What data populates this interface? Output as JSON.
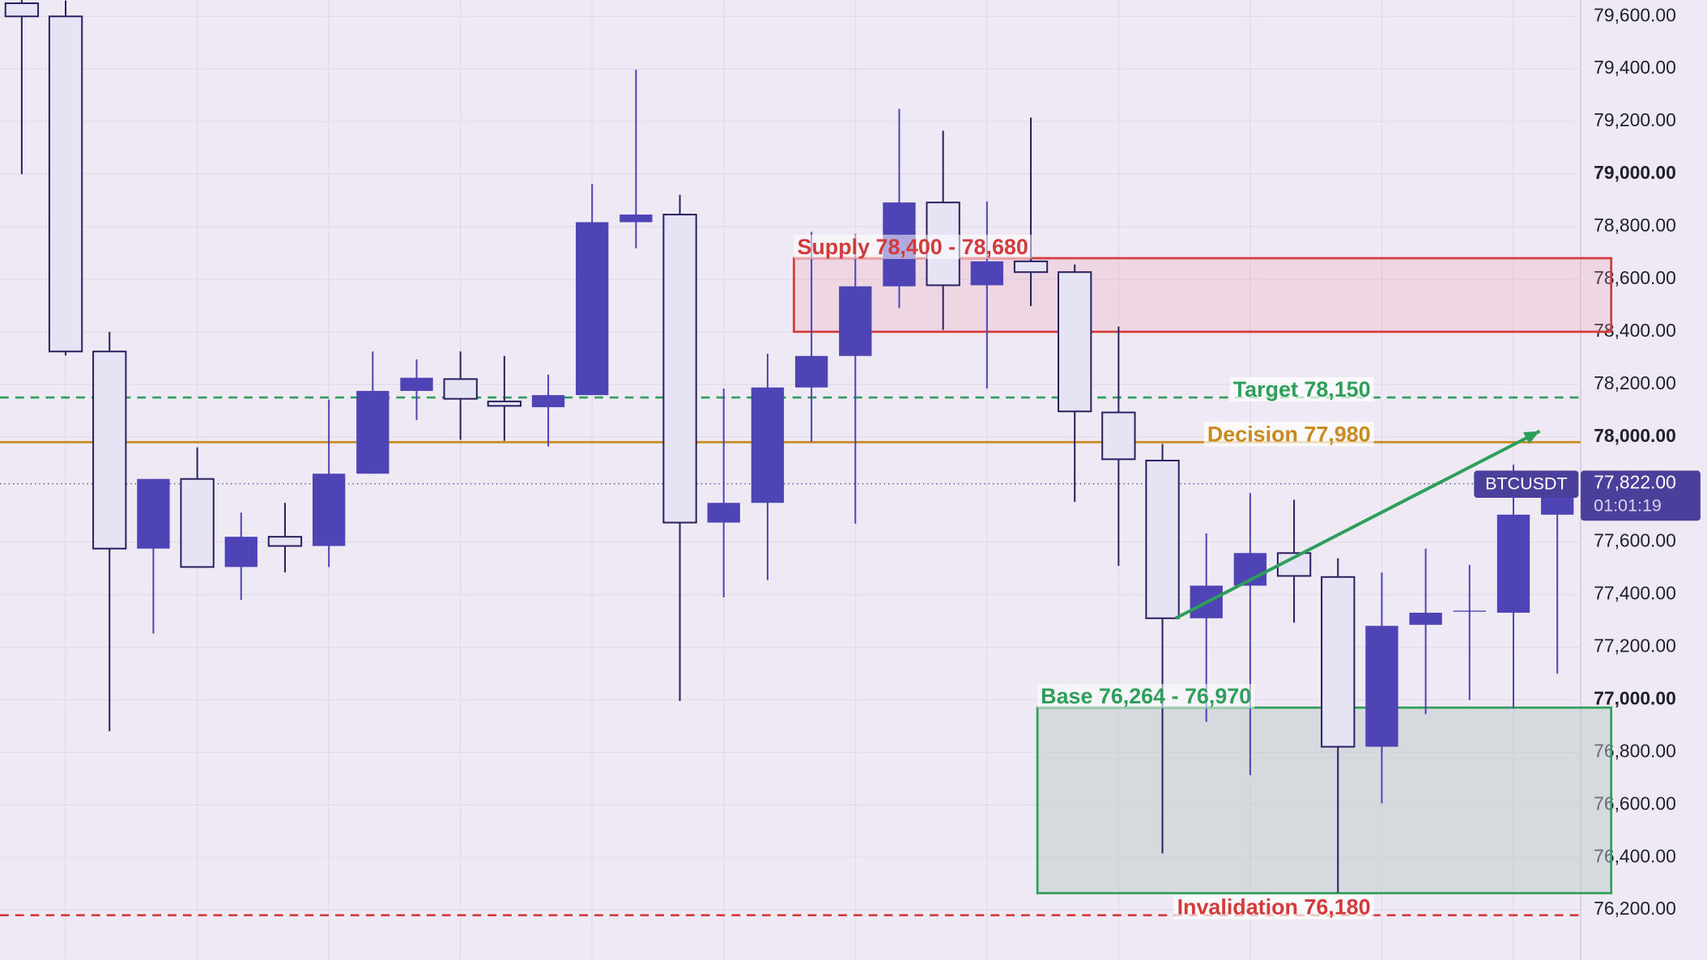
{
  "chart_data": {
    "type": "candlestick",
    "series": [
      {
        "name": "BTCUSDT",
        "up_color": "#4f44b5",
        "down_color": "#e6e3f5",
        "open": [
          79650,
          79600,
          78325,
          77575,
          77840,
          77505,
          77620,
          77585,
          77860,
          78175,
          78220,
          78135,
          78113,
          78159,
          78817,
          78846,
          77674,
          77749,
          78188,
          78308,
          78573,
          78892,
          78577,
          78668,
          78627,
          78093,
          77910,
          77310,
          77434,
          77558,
          77467,
          76821,
          77285,
          77339,
          77331,
          77704
        ],
        "high": [
          79680,
          79660,
          78400,
          77840,
          77960,
          77712,
          77749,
          78142,
          78325,
          78295,
          78325,
          78308,
          78237,
          78962,
          79397,
          78921,
          78184,
          78316,
          78780,
          78772,
          79248,
          79165,
          78896,
          79215,
          78656,
          78420,
          77973,
          77633,
          77786,
          77761,
          77538,
          77484,
          77575,
          77513,
          77894,
          77860
        ],
        "low": [
          79000,
          78310,
          76880,
          77252,
          77505,
          77380,
          77484,
          77505,
          77860,
          78064,
          77989,
          77985,
          77964,
          78159,
          78718,
          76995,
          77389,
          77455,
          77981,
          77670,
          78490,
          78407,
          78184,
          78498,
          77753,
          77509,
          76415,
          76916,
          76713,
          77293,
          76266,
          76606,
          76945,
          76999,
          76966,
          77099
        ],
        "close": [
          79600,
          78325,
          77575,
          77840,
          77505,
          77620,
          77585,
          77860,
          78175,
          78225,
          78145,
          78118,
          78159,
          78817,
          78846,
          77674,
          77749,
          78188,
          78308,
          78573,
          78892,
          78577,
          78668,
          78627,
          78097,
          77915,
          77310,
          77434,
          77558,
          77471,
          76821,
          77281,
          77331,
          77339,
          77704,
          77822
        ]
      }
    ],
    "ylim": [
      76010,
      79662
    ],
    "yticks": [
      {
        "value": 76200,
        "label": "76,200.00"
      },
      {
        "value": 76400,
        "label": "76,400.00"
      },
      {
        "value": 76600,
        "label": "76,600.00"
      },
      {
        "value": 76800,
        "label": "76,800.00"
      },
      {
        "value": 77000,
        "label": "77,000.00"
      },
      {
        "value": 77200,
        "label": "77,200.00"
      },
      {
        "value": 77400,
        "label": "77,400.00"
      },
      {
        "value": 77600,
        "label": "77,600.00"
      },
      {
        "value": 78000,
        "label": "78,000.00"
      },
      {
        "value": 78200,
        "label": "78,200.00"
      },
      {
        "value": 78400,
        "label": "78,400.00"
      },
      {
        "value": 78600,
        "label": "78,600.00"
      },
      {
        "value": 78800,
        "label": "78,800.00"
      },
      {
        "value": 79000,
        "label": "79,000.00"
      },
      {
        "value": 79200,
        "label": "79,200.00"
      },
      {
        "value": 79400,
        "label": "79,400.00"
      },
      {
        "value": 79600,
        "label": "79,600.00"
      }
    ],
    "grid": true,
    "zones": [
      {
        "label": "Supply 78,400 - 78,680",
        "low": 78400,
        "high": 78680,
        "x_start": 17.6,
        "color": "#d43a3a"
      },
      {
        "label": "Base 76,264 - 76,970",
        "low": 76264,
        "high": 76970,
        "x_start": 23.15,
        "color": "#2e9e5b"
      }
    ],
    "levels": [
      {
        "label": "Target 78,150",
        "value": 78150,
        "color": "#2e9e5b",
        "style": "dashed"
      },
      {
        "label": "Decision 77,980",
        "value": 77980,
        "color": "#c98a1e",
        "style": "solid"
      },
      {
        "label": "Invalidation 76,180",
        "value": 76180,
        "color": "#d43a3a",
        "style": "dashed"
      }
    ],
    "arrow": {
      "from_x": 26.3,
      "from_value": 77310,
      "to_x": 34.6,
      "to_value": 78022,
      "color": "#2e9e5b"
    },
    "last_price": {
      "symbol": "BTCUSDT",
      "value": 77822,
      "label": "77,822.00",
      "countdown": "01:01:19"
    }
  }
}
